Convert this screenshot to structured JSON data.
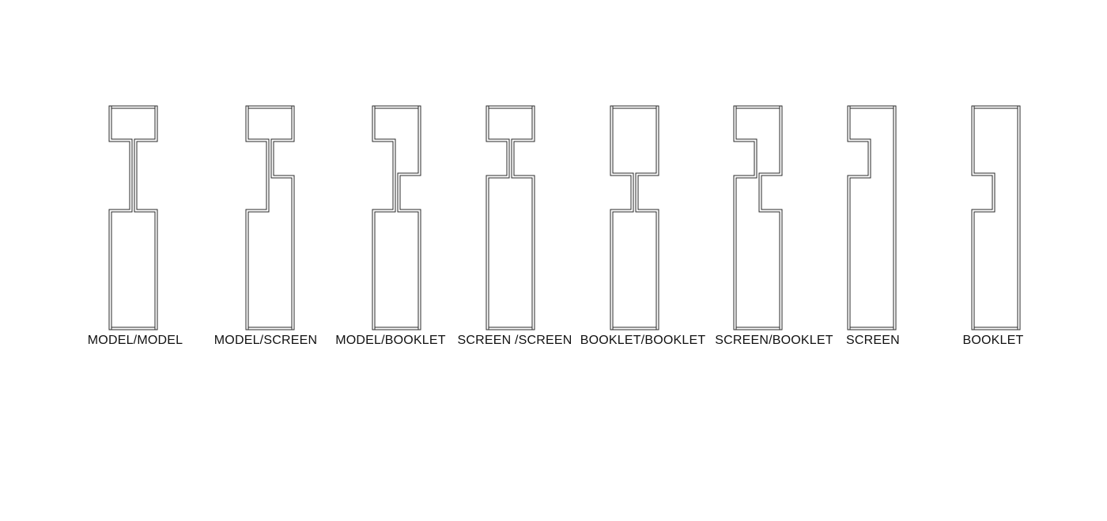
{
  "diagram": {
    "units": [
      {
        "id": "model-model",
        "label": "MODEL/MODEL",
        "left_panel": "model",
        "right_panel": "model"
      },
      {
        "id": "model-screen",
        "label": "MODEL/SCREEN",
        "left_panel": "model",
        "right_panel": "screen"
      },
      {
        "id": "model-booklet",
        "label": "MODEL/BOOKLET",
        "left_panel": "model",
        "right_panel": "booklet"
      },
      {
        "id": "screen-screen",
        "label": "SCREEN /SCREEN",
        "left_panel": "screen",
        "right_panel": "screen"
      },
      {
        "id": "booklet-booklet",
        "label": "BOOKLET/BOOKLET",
        "left_panel": "booklet",
        "right_panel": "booklet"
      },
      {
        "id": "screen-booklet",
        "label": "SCREEN/BOOKLET",
        "left_panel": "screen",
        "right_panel": "booklet"
      },
      {
        "id": "screen",
        "label": "SCREEN",
        "left_panel": "screen",
        "right_panel": "none"
      },
      {
        "id": "booklet",
        "label": "BOOKLET",
        "left_panel": "booklet",
        "right_panel": "none"
      }
    ],
    "colors": {
      "line": "#2a2a2a",
      "text": "#111111",
      "background": "#ffffff"
    }
  }
}
